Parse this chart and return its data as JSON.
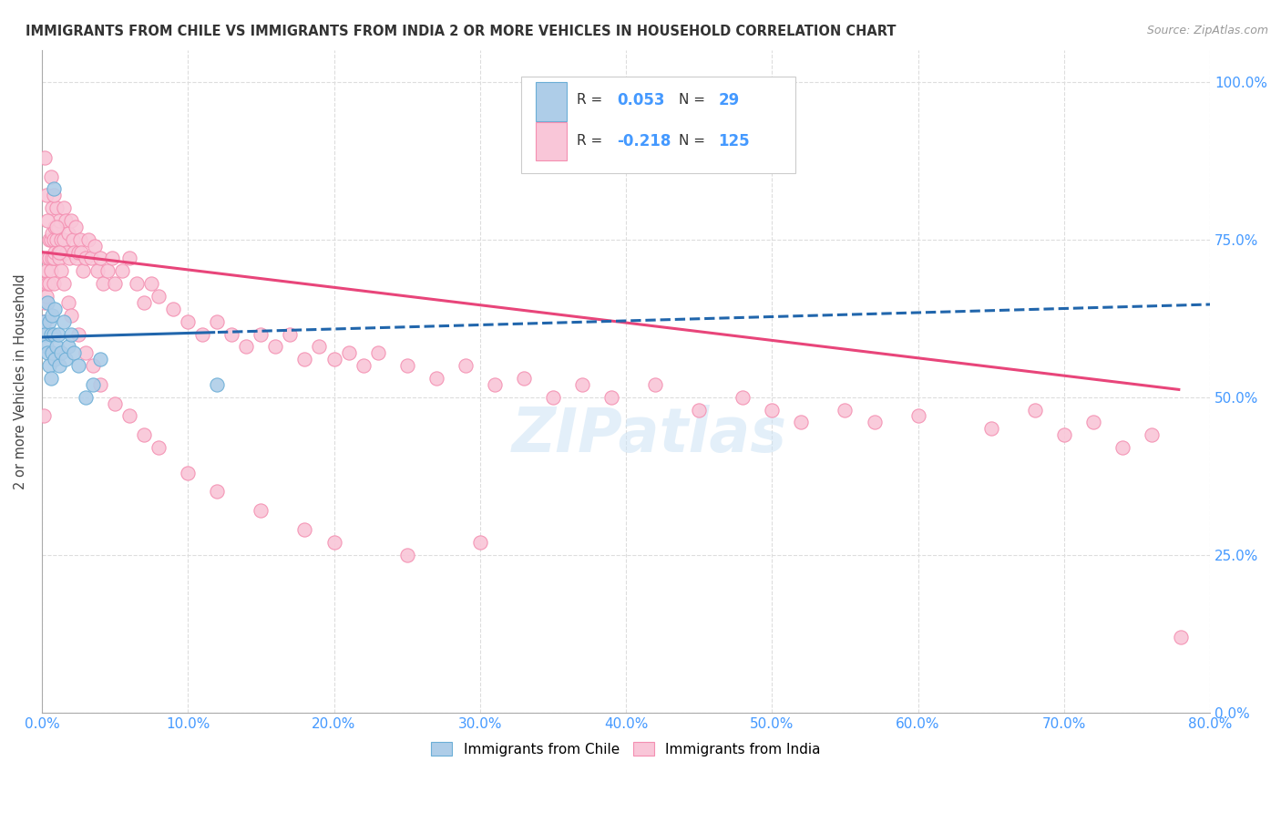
{
  "title": "IMMIGRANTS FROM CHILE VS IMMIGRANTS FROM INDIA 2 OR MORE VEHICLES IN HOUSEHOLD CORRELATION CHART",
  "source": "Source: ZipAtlas.com",
  "ylabel": "2 or more Vehicles in Household",
  "xmin": 0.0,
  "xmax": 0.8,
  "ymin": 0.0,
  "ymax": 1.05,
  "chile_R": 0.053,
  "chile_N": 29,
  "india_R": -0.218,
  "india_N": 125,
  "chile_dot_color": "#6baed6",
  "chile_dot_fill": "#aecde8",
  "india_dot_color": "#f48fb1",
  "india_dot_fill": "#f9c6d8",
  "trend_chile_color": "#2166ac",
  "trend_india_color": "#e8457a",
  "watermark": "ZIPatlas",
  "tick_color": "#4499ff",
  "title_color": "#333333",
  "source_color": "#999999",
  "grid_color": "#dddddd",
  "legend_text_color": "#333333",
  "legend_value_color": "#4499ff",
  "chile_x": [
    0.001,
    0.002,
    0.003,
    0.004,
    0.004,
    0.005,
    0.005,
    0.006,
    0.006,
    0.007,
    0.007,
    0.008,
    0.008,
    0.009,
    0.009,
    0.01,
    0.011,
    0.012,
    0.013,
    0.015,
    0.016,
    0.018,
    0.02,
    0.022,
    0.025,
    0.03,
    0.035,
    0.04,
    0.12
  ],
  "chile_y": [
    0.62,
    0.6,
    0.58,
    0.65,
    0.57,
    0.62,
    0.55,
    0.6,
    0.53,
    0.63,
    0.57,
    0.83,
    0.6,
    0.56,
    0.64,
    0.58,
    0.6,
    0.55,
    0.57,
    0.62,
    0.56,
    0.58,
    0.6,
    0.57,
    0.55,
    0.5,
    0.52,
    0.56,
    0.52
  ],
  "india_x": [
    0.001,
    0.001,
    0.002,
    0.002,
    0.002,
    0.003,
    0.003,
    0.004,
    0.004,
    0.005,
    0.005,
    0.005,
    0.006,
    0.006,
    0.007,
    0.007,
    0.007,
    0.008,
    0.008,
    0.008,
    0.009,
    0.009,
    0.01,
    0.01,
    0.011,
    0.011,
    0.012,
    0.012,
    0.013,
    0.013,
    0.014,
    0.015,
    0.015,
    0.016,
    0.017,
    0.018,
    0.019,
    0.02,
    0.021,
    0.022,
    0.023,
    0.024,
    0.025,
    0.026,
    0.027,
    0.028,
    0.03,
    0.032,
    0.034,
    0.036,
    0.038,
    0.04,
    0.042,
    0.045,
    0.048,
    0.05,
    0.055,
    0.06,
    0.065,
    0.07,
    0.075,
    0.08,
    0.09,
    0.1,
    0.11,
    0.12,
    0.13,
    0.14,
    0.15,
    0.16,
    0.17,
    0.18,
    0.19,
    0.2,
    0.21,
    0.22,
    0.23,
    0.25,
    0.27,
    0.29,
    0.31,
    0.33,
    0.35,
    0.37,
    0.39,
    0.42,
    0.45,
    0.48,
    0.5,
    0.52,
    0.55,
    0.57,
    0.6,
    0.65,
    0.68,
    0.7,
    0.72,
    0.74,
    0.76,
    0.78,
    0.002,
    0.003,
    0.004,
    0.006,
    0.008,
    0.01,
    0.012,
    0.015,
    0.018,
    0.02,
    0.025,
    0.03,
    0.035,
    0.04,
    0.05,
    0.06,
    0.07,
    0.08,
    0.1,
    0.12,
    0.15,
    0.18,
    0.2,
    0.25,
    0.3
  ],
  "india_y": [
    0.47,
    0.62,
    0.65,
    0.68,
    0.62,
    0.7,
    0.66,
    0.72,
    0.68,
    0.75,
    0.72,
    0.68,
    0.75,
    0.7,
    0.72,
    0.76,
    0.8,
    0.75,
    0.72,
    0.68,
    0.77,
    0.73,
    0.75,
    0.8,
    0.77,
    0.73,
    0.78,
    0.72,
    0.75,
    0.7,
    0.73,
    0.8,
    0.75,
    0.78,
    0.73,
    0.76,
    0.72,
    0.78,
    0.75,
    0.73,
    0.77,
    0.72,
    0.73,
    0.75,
    0.73,
    0.7,
    0.72,
    0.75,
    0.72,
    0.74,
    0.7,
    0.72,
    0.68,
    0.7,
    0.72,
    0.68,
    0.7,
    0.72,
    0.68,
    0.65,
    0.68,
    0.66,
    0.64,
    0.62,
    0.6,
    0.62,
    0.6,
    0.58,
    0.6,
    0.58,
    0.6,
    0.56,
    0.58,
    0.56,
    0.57,
    0.55,
    0.57,
    0.55,
    0.53,
    0.55,
    0.52,
    0.53,
    0.5,
    0.52,
    0.5,
    0.52,
    0.48,
    0.5,
    0.48,
    0.46,
    0.48,
    0.46,
    0.47,
    0.45,
    0.48,
    0.44,
    0.46,
    0.42,
    0.44,
    0.12,
    0.88,
    0.82,
    0.78,
    0.85,
    0.82,
    0.77,
    0.73,
    0.68,
    0.65,
    0.63,
    0.6,
    0.57,
    0.55,
    0.52,
    0.49,
    0.47,
    0.44,
    0.42,
    0.38,
    0.35,
    0.32,
    0.29,
    0.27,
    0.25,
    0.27
  ]
}
